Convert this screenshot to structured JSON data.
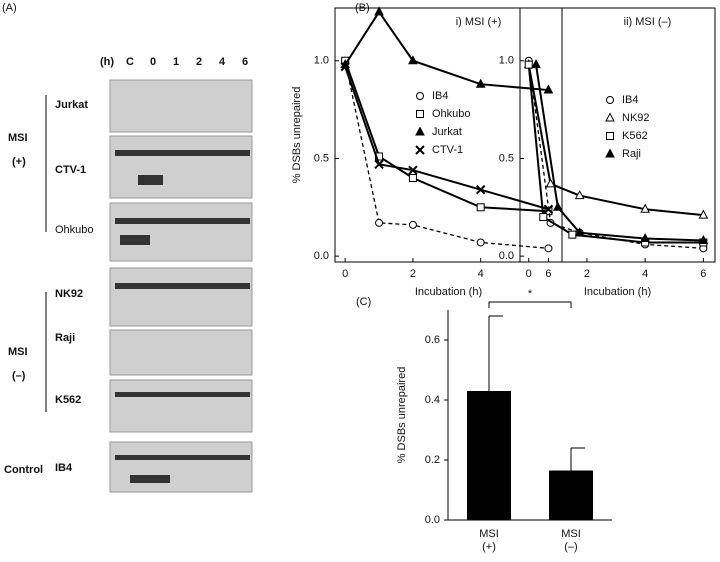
{
  "panel_a": {
    "label": "(A)",
    "hours_label": "(h)",
    "lanes": [
      "C",
      "0",
      "1",
      "2",
      "4",
      "6"
    ],
    "groups": [
      {
        "name": "MSI",
        "sub": "(+)"
      },
      {
        "name": "MSI",
        "sub": "(–)"
      },
      {
        "name": "Control"
      }
    ],
    "cells": [
      "Jurkat",
      "CTV-1",
      "Ohkubo",
      "NK92",
      "Raji",
      "K562",
      "IB4"
    ]
  },
  "panel_b_label": "(B)",
  "panel_c_label": "(C)",
  "chart_data": [
    {
      "type": "line",
      "title": "i) MSI (+)",
      "x_label": "Incubation (h)",
      "y_label": "% DSBs unrepaired",
      "xlim": [
        -0.3,
        6.4
      ],
      "ylim": [
        -0.03,
        1.27
      ],
      "xticks": [
        0,
        2,
        4,
        6
      ],
      "yticks": [
        {
          "value": 0,
          "label": "0.0"
        },
        0.5,
        {
          "value": 1,
          "label": "1.0"
        }
      ],
      "x": [
        0,
        1,
        2,
        4,
        6
      ],
      "series": [
        {
          "name": "IB4",
          "color": "#000000",
          "marker": "circle-open",
          "dashed": true,
          "values": [
            1.0,
            0.17,
            0.16,
            0.07,
            0.04
          ]
        },
        {
          "name": "Ohkubo",
          "color": "#000000",
          "marker": "square-open",
          "values": [
            1.0,
            0.51,
            0.4,
            0.25,
            0.23
          ]
        },
        {
          "name": "Jurkat",
          "color": "#000000",
          "marker": "triangle-filled",
          "values": [
            0.98,
            1.25,
            1.0,
            0.88,
            0.85
          ]
        },
        {
          "name": "CTV-1",
          "color": "#000000",
          "marker": "x",
          "values": [
            0.97,
            0.47,
            0.44,
            0.34,
            0.24
          ]
        }
      ]
    },
    {
      "type": "line",
      "title": "ii) MSI (–)",
      "x_label": "Incubation (h)",
      "xlim": [
        -0.3,
        6.4
      ],
      "ylim": [
        -0.03,
        1.27
      ],
      "xticks": [
        0,
        2,
        4,
        6
      ],
      "yticks": [
        {
          "value": 0,
          "label": "0.0"
        },
        0.5,
        {
          "value": 1,
          "label": "1.0"
        }
      ],
      "series": [
        {
          "name": "IB4",
          "color": "#000000",
          "marker": "circle-open",
          "dashed": true,
          "x": [
            0,
            0.75,
            1.75,
            4,
            6
          ],
          "values": [
            1.0,
            0.17,
            0.12,
            0.06,
            0.04
          ]
        },
        {
          "name": "NK92",
          "color": "#000000",
          "marker": "triangle-open",
          "x": [
            0,
            0.75,
            1.75,
            4,
            6
          ],
          "values": [
            0.98,
            0.37,
            0.31,
            0.24,
            0.21
          ]
        },
        {
          "name": "K562",
          "color": "#000000",
          "marker": "square-open",
          "x": [
            0,
            0.5,
            1.5,
            4,
            6
          ],
          "values": [
            0.98,
            0.2,
            0.11,
            0.07,
            0.07
          ]
        },
        {
          "name": "Raji",
          "color": "#000000",
          "marker": "triangle-filled",
          "x": [
            0.25,
            1,
            1.75,
            4,
            6
          ],
          "values": [
            0.98,
            0.25,
            0.12,
            0.09,
            0.08
          ]
        }
      ]
    },
    {
      "type": "bar",
      "y_label": "% DSBs unrepaired",
      "categories": [
        "MSI\n(+)",
        "MSI\n(–)"
      ],
      "values": [
        0.43,
        0.165
      ],
      "errors": [
        0.25,
        0.075
      ],
      "color": "#000000",
      "ylim": [
        0,
        0.7
      ],
      "yticks": [
        {
          "value": 0,
          "label": "0.0"
        },
        0.2,
        0.4,
        0.6
      ],
      "annotation": "*"
    }
  ]
}
